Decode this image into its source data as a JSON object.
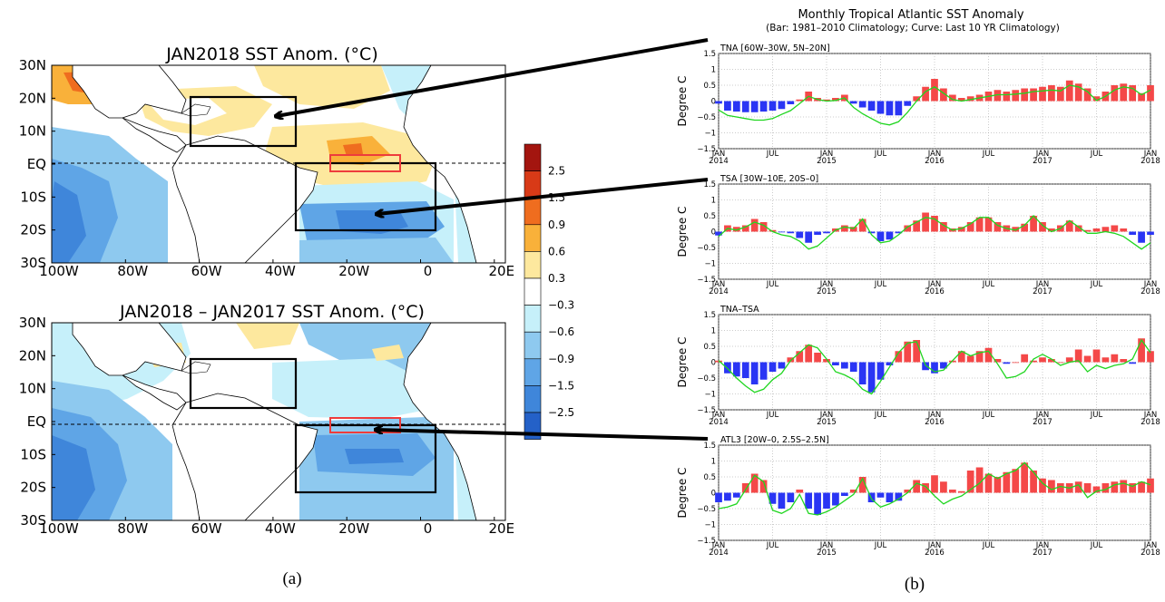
{
  "colors": {
    "neg": [
      "#c6f0fa",
      "#8ec9ef",
      "#5fa5e6",
      "#3f86da",
      "#2461c8"
    ],
    "pos": [
      "#fde89e",
      "#f9b13a",
      "#ef6d1f",
      "#d83a17",
      "#a3150f"
    ],
    "bar_pos": "#f44848",
    "bar_neg": "#2a35f4",
    "curve": "#20d620"
  },
  "map_a": {
    "title": "JAN2018 SST Anom. (°C)"
  },
  "map_b": {
    "title": "JAN2018 – JAN2017 SST Anom. (°C)"
  },
  "map_axes": {
    "lat_labels": [
      "30N",
      "20N",
      "10N",
      "EQ",
      "10S",
      "20S",
      "30S"
    ],
    "lon_labels": [
      "100W",
      "80W",
      "60W",
      "40W",
      "20W",
      "0",
      "20E"
    ]
  },
  "colorbar": {
    "labels": [
      "2.5",
      "1.5",
      "0.9",
      "0.6",
      "0.3",
      "−0.3",
      "−0.6",
      "−0.9",
      "−1.5",
      "−2.5"
    ]
  },
  "captions": {
    "a": "(a)",
    "b": "(b)"
  },
  "ts": {
    "title": "Monthly Tropical Atlantic SST Anomaly",
    "subtitle": "(Bar: 1981–2010 Climatology; Curve: Last 10 YR Climatology)",
    "ylabel": "Degree C",
    "y_ticks": [
      "1.5",
      "1",
      "0.5",
      "0",
      "−0.5",
      "−1",
      "−1.5"
    ],
    "x_ticks": [
      {
        "m": "JAN",
        "y": "2014"
      },
      {
        "m": "JUL",
        "y": ""
      },
      {
        "m": "JAN",
        "y": "2015"
      },
      {
        "m": "JUL",
        "y": ""
      },
      {
        "m": "JAN",
        "y": "2016"
      },
      {
        "m": "JUL",
        "y": ""
      },
      {
        "m": "JAN",
        "y": "2017"
      },
      {
        "m": "JUL",
        "y": ""
      },
      {
        "m": "JAN",
        "y": "2018"
      }
    ]
  },
  "chart_data": [
    {
      "type": "bar",
      "title": "TNA [60W–30W, 5N–20N]",
      "ylabel": "Degree C",
      "ylim": [
        -1.5,
        1.5
      ],
      "x_start": "2014-01",
      "months": 49,
      "series": [
        {
          "values": [
            -0.08,
            -0.3,
            -0.33,
            -0.35,
            -0.35,
            -0.33,
            -0.3,
            -0.25,
            -0.1,
            0.05,
            0.3,
            0.1,
            0.05,
            0.1,
            0.2,
            -0.08,
            -0.2,
            -0.3,
            -0.4,
            -0.45,
            -0.45,
            -0.15,
            0.15,
            0.45,
            0.7,
            0.4,
            0.2,
            0.1,
            0.15,
            0.2,
            0.3,
            0.35,
            0.3,
            0.35,
            0.4,
            0.4,
            0.45,
            0.5,
            0.45,
            0.65,
            0.55,
            0.4,
            0.15,
            0.3,
            0.5,
            0.55,
            0.5,
            0.25,
            0.5
          ]
        },
        {
          "values": [
            -0.28,
            -0.45,
            -0.5,
            -0.55,
            -0.6,
            -0.6,
            -0.55,
            -0.42,
            -0.3,
            -0.08,
            0.15,
            0.05,
            0.0,
            0.02,
            0.1,
            -0.2,
            -0.4,
            -0.55,
            -0.7,
            -0.75,
            -0.65,
            -0.35,
            0.0,
            0.3,
            0.45,
            0.25,
            0.05,
            0.0,
            0.05,
            0.1,
            0.15,
            0.2,
            0.2,
            0.22,
            0.25,
            0.3,
            0.32,
            0.35,
            0.32,
            0.5,
            0.45,
            0.3,
            0.02,
            0.15,
            0.35,
            0.45,
            0.4,
            0.2,
            0.35
          ]
        }
      ]
    },
    {
      "type": "bar",
      "title": "TSA [30W–10E, 20S–0]",
      "ylabel": "Degree C",
      "ylim": [
        -1.5,
        1.5
      ],
      "x_start": "2014-01",
      "months": 49,
      "series": [
        {
          "values": [
            -0.12,
            0.2,
            0.15,
            0.2,
            0.4,
            0.3,
            0.05,
            -0.02,
            -0.05,
            -0.2,
            -0.35,
            -0.1,
            -0.05,
            0.1,
            0.2,
            0.15,
            0.4,
            -0.05,
            -0.3,
            -0.25,
            -0.05,
            0.2,
            0.35,
            0.6,
            0.5,
            0.3,
            0.1,
            0.15,
            0.3,
            0.45,
            0.45,
            0.3,
            0.2,
            0.15,
            0.25,
            0.5,
            0.3,
            0.1,
            0.2,
            0.35,
            0.2,
            0.05,
            0.1,
            0.15,
            0.2,
            0.1,
            -0.1,
            -0.35,
            -0.1
          ]
        },
        {
          "values": [
            -0.15,
            0.1,
            0.05,
            0.15,
            0.3,
            0.2,
            0.0,
            -0.1,
            -0.15,
            -0.3,
            -0.55,
            -0.45,
            -0.2,
            0.05,
            0.15,
            0.1,
            0.4,
            -0.1,
            -0.35,
            -0.3,
            -0.1,
            0.15,
            0.3,
            0.45,
            0.4,
            0.2,
            0.05,
            0.1,
            0.25,
            0.45,
            0.45,
            0.2,
            0.1,
            0.05,
            0.2,
            0.5,
            0.2,
            0.0,
            0.1,
            0.35,
            0.15,
            -0.05,
            -0.05,
            0.0,
            -0.05,
            -0.15,
            -0.35,
            -0.55,
            -0.35
          ]
        }
      ]
    },
    {
      "type": "bar",
      "title": "TNA–TSA",
      "ylabel": "Degree C",
      "ylim": [
        -1.5,
        1.5
      ],
      "x_start": "2014-01",
      "months": 49,
      "series": [
        {
          "values": [
            0.05,
            -0.35,
            -0.45,
            -0.5,
            -0.7,
            -0.55,
            -0.3,
            -0.2,
            0.15,
            0.35,
            0.55,
            0.3,
            0.1,
            -0.1,
            -0.2,
            -0.3,
            -0.7,
            -0.95,
            -0.55,
            -0.1,
            0.35,
            0.65,
            0.7,
            -0.25,
            -0.35,
            -0.2,
            0.05,
            0.35,
            0.2,
            0.35,
            0.45,
            0.1,
            -0.05,
            0.0,
            0.25,
            0.05,
            0.15,
            0.1,
            0.0,
            0.15,
            0.4,
            0.2,
            0.4,
            0.15,
            0.25,
            0.1,
            -0.05,
            0.75,
            0.35
          ]
        },
        {
          "values": [
            0.05,
            -0.2,
            -0.5,
            -0.75,
            -0.95,
            -0.85,
            -0.55,
            -0.35,
            0.05,
            0.3,
            0.55,
            0.45,
            0.1,
            -0.3,
            -0.4,
            -0.55,
            -0.85,
            -1.0,
            -0.6,
            -0.15,
            0.3,
            0.6,
            0.65,
            -0.1,
            -0.3,
            -0.25,
            0.05,
            0.35,
            0.2,
            0.3,
            0.35,
            -0.05,
            -0.5,
            -0.45,
            -0.3,
            0.1,
            0.25,
            0.1,
            -0.1,
            0.0,
            0.05,
            -0.3,
            -0.1,
            -0.2,
            -0.1,
            -0.05,
            0.1,
            0.7,
            0.3
          ]
        }
      ]
    },
    {
      "type": "bar",
      "title": "ATL3 [20W–0, 2.5S–2.5N]",
      "ylabel": "Degree C",
      "ylim": [
        -1.5,
        1.5
      ],
      "x_start": "2014-01",
      "months": 49,
      "series": [
        {
          "values": [
            -0.3,
            -0.25,
            -0.15,
            0.3,
            0.6,
            0.4,
            -0.35,
            -0.5,
            -0.3,
            0.1,
            -0.5,
            -0.7,
            -0.5,
            -0.4,
            -0.1,
            0.1,
            0.5,
            -0.3,
            -0.15,
            -0.3,
            -0.25,
            0.1,
            0.4,
            0.3,
            0.55,
            0.35,
            0.1,
            0.05,
            0.7,
            0.8,
            0.6,
            0.5,
            0.65,
            0.75,
            0.95,
            0.7,
            0.45,
            0.4,
            0.3,
            0.3,
            0.35,
            0.3,
            0.2,
            0.3,
            0.35,
            0.4,
            0.3,
            0.35,
            0.45
          ]
        },
        {
          "values": [
            -0.5,
            -0.45,
            -0.35,
            0.1,
            0.55,
            0.35,
            -0.55,
            -0.65,
            -0.5,
            -0.05,
            -0.65,
            -0.7,
            -0.6,
            -0.45,
            -0.25,
            -0.05,
            0.45,
            -0.2,
            -0.45,
            -0.35,
            -0.2,
            0.0,
            0.3,
            0.2,
            -0.1,
            -0.35,
            -0.2,
            -0.1,
            0.1,
            0.3,
            0.6,
            0.45,
            0.6,
            0.7,
            0.95,
            0.65,
            0.3,
            0.1,
            0.2,
            0.15,
            0.25,
            -0.15,
            0.05,
            0.1,
            0.25,
            0.3,
            0.2,
            0.35,
            0.25
          ]
        }
      ]
    }
  ]
}
